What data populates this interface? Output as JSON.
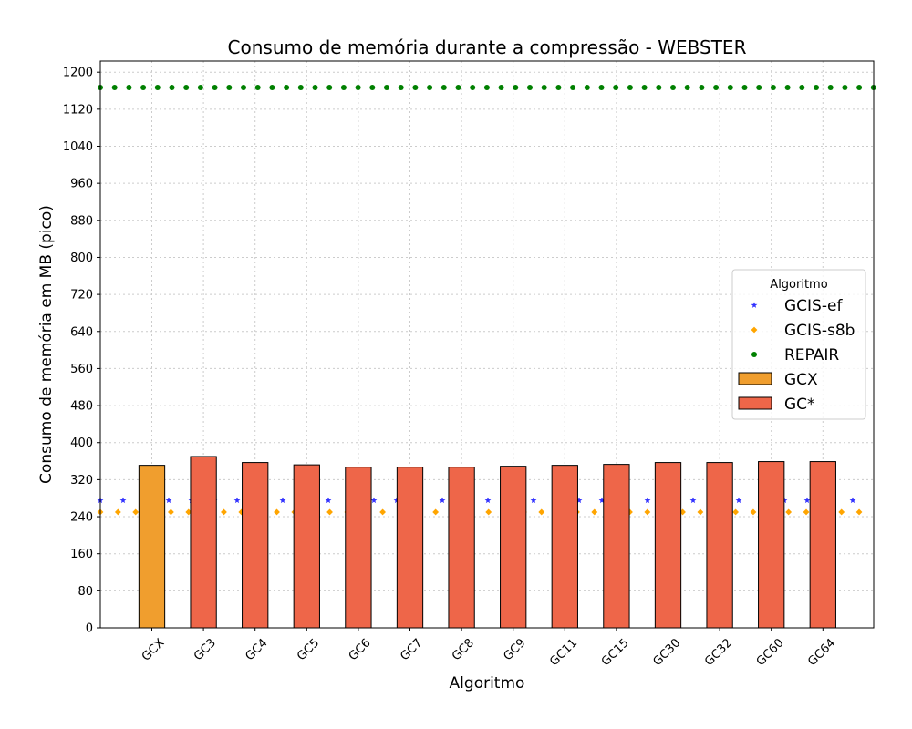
{
  "chart_data": {
    "type": "bar",
    "title": "Consumo de memória durante a compressão -  WEBSTER",
    "xlabel": "Algoritmo",
    "ylabel": "Consumo de memória em MB (pico)",
    "ylim": [
      0,
      1224
    ],
    "yticks": [
      0,
      80,
      160,
      240,
      320,
      400,
      480,
      560,
      640,
      720,
      800,
      880,
      960,
      1040,
      1120,
      1200
    ],
    "grid": true,
    "categories": [
      "GCX",
      "GC3",
      "GC4",
      "GC5",
      "GC6",
      "GC7",
      "GC8",
      "GC9",
      "GC11",
      "GC15",
      "GC30",
      "GC32",
      "GC60",
      "GC64"
    ],
    "series": [
      {
        "name": "GCX",
        "color": "#f09e2e",
        "values": [
          351,
          null,
          null,
          null,
          null,
          null,
          null,
          null,
          null,
          null,
          null,
          null,
          null,
          null
        ]
      },
      {
        "name": "GC*",
        "color": "#ee6649",
        "values": [
          null,
          370,
          357,
          352,
          347,
          347,
          347,
          349,
          351,
          353,
          357,
          357,
          359,
          359
        ]
      }
    ],
    "reference_lines": [
      {
        "name": "GCIS-ef",
        "value": 275,
        "color": "#3333ff",
        "marker": "star"
      },
      {
        "name": "GCIS-s8b",
        "value": 250,
        "color": "#ffa500",
        "marker": "diamond"
      },
      {
        "name": "REPAIR",
        "value": 1167,
        "color": "#008000",
        "marker": "circle"
      }
    ],
    "legend": {
      "title": "Algoritmo",
      "position": "center-right",
      "entries": [
        "GCIS-ef",
        "GCIS-s8b",
        "REPAIR",
        "GCX",
        "GC*"
      ]
    }
  }
}
